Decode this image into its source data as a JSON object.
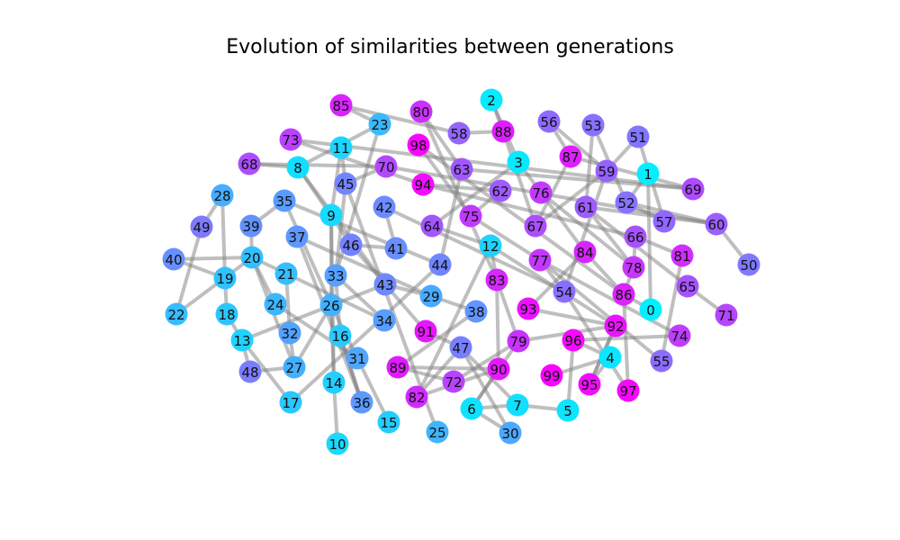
{
  "title": "Evolution of similarities between generations",
  "colors": {
    "edge": "#808080",
    "low": "#00f0ff",
    "high": "#ff00ff"
  },
  "nodes": [
    {
      "id": "0",
      "v": 0.0
    },
    {
      "id": "1",
      "v": 0.01
    },
    {
      "id": "2",
      "v": 0.02
    },
    {
      "id": "3",
      "v": 0.03
    },
    {
      "id": "4",
      "v": 0.04
    },
    {
      "id": "5",
      "v": 0.05
    },
    {
      "id": "6",
      "v": 0.06
    },
    {
      "id": "7",
      "v": 0.07
    },
    {
      "id": "8",
      "v": 0.08
    },
    {
      "id": "9",
      "v": 0.09
    },
    {
      "id": "10",
      "v": 0.1
    },
    {
      "id": "11",
      "v": 0.11
    },
    {
      "id": "12",
      "v": 0.12
    },
    {
      "id": "13",
      "v": 0.13
    },
    {
      "id": "14",
      "v": 0.14
    },
    {
      "id": "15",
      "v": 0.15
    },
    {
      "id": "16",
      "v": 0.16
    },
    {
      "id": "17",
      "v": 0.17
    },
    {
      "id": "18",
      "v": 0.18
    },
    {
      "id": "19",
      "v": 0.19
    },
    {
      "id": "20",
      "v": 0.2
    },
    {
      "id": "21",
      "v": 0.21
    },
    {
      "id": "22",
      "v": 0.22
    },
    {
      "id": "23",
      "v": 0.23
    },
    {
      "id": "24",
      "v": 0.24
    },
    {
      "id": "25",
      "v": 0.25
    },
    {
      "id": "26",
      "v": 0.26
    },
    {
      "id": "27",
      "v": 0.27
    },
    {
      "id": "28",
      "v": 0.28
    },
    {
      "id": "29",
      "v": 0.29
    },
    {
      "id": "30",
      "v": 0.3
    },
    {
      "id": "31",
      "v": 0.31
    },
    {
      "id": "32",
      "v": 0.32
    },
    {
      "id": "33",
      "v": 0.33
    },
    {
      "id": "34",
      "v": 0.34
    },
    {
      "id": "35",
      "v": 0.35
    },
    {
      "id": "36",
      "v": 0.36
    },
    {
      "id": "37",
      "v": 0.37
    },
    {
      "id": "38",
      "v": 0.38
    },
    {
      "id": "39",
      "v": 0.39
    },
    {
      "id": "40",
      "v": 0.4
    },
    {
      "id": "41",
      "v": 0.41
    },
    {
      "id": "42",
      "v": 0.42
    },
    {
      "id": "43",
      "v": 0.43
    },
    {
      "id": "44",
      "v": 0.44
    },
    {
      "id": "45",
      "v": 0.45
    },
    {
      "id": "46",
      "v": 0.46
    },
    {
      "id": "47",
      "v": 0.47
    },
    {
      "id": "48",
      "v": 0.48
    },
    {
      "id": "49",
      "v": 0.49
    },
    {
      "id": "50",
      "v": 0.5
    },
    {
      "id": "51",
      "v": 0.51
    },
    {
      "id": "52",
      "v": 0.52
    },
    {
      "id": "53",
      "v": 0.53
    },
    {
      "id": "54",
      "v": 0.54
    },
    {
      "id": "55",
      "v": 0.55
    },
    {
      "id": "56",
      "v": 0.56
    },
    {
      "id": "57",
      "v": 0.57
    },
    {
      "id": "58",
      "v": 0.58
    },
    {
      "id": "59",
      "v": 0.59
    },
    {
      "id": "60",
      "v": 0.6
    },
    {
      "id": "61",
      "v": 0.61
    },
    {
      "id": "62",
      "v": 0.62
    },
    {
      "id": "63",
      "v": 0.63
    },
    {
      "id": "64",
      "v": 0.64
    },
    {
      "id": "65",
      "v": 0.65
    },
    {
      "id": "66",
      "v": 0.66
    },
    {
      "id": "67",
      "v": 0.67
    },
    {
      "id": "68",
      "v": 0.68
    },
    {
      "id": "69",
      "v": 0.69
    },
    {
      "id": "70",
      "v": 0.7
    },
    {
      "id": "71",
      "v": 0.71
    },
    {
      "id": "72",
      "v": 0.72
    },
    {
      "id": "73",
      "v": 0.73
    },
    {
      "id": "74",
      "v": 0.74
    },
    {
      "id": "75",
      "v": 0.75
    },
    {
      "id": "76",
      "v": 0.76
    },
    {
      "id": "77",
      "v": 0.77
    },
    {
      "id": "78",
      "v": 0.78
    },
    {
      "id": "79",
      "v": 0.79
    },
    {
      "id": "80",
      "v": 0.8
    },
    {
      "id": "81",
      "v": 0.81
    },
    {
      "id": "82",
      "v": 0.82
    },
    {
      "id": "83",
      "v": 0.83
    },
    {
      "id": "84",
      "v": 0.84
    },
    {
      "id": "85",
      "v": 0.85
    },
    {
      "id": "86",
      "v": 0.86
    },
    {
      "id": "87",
      "v": 0.87
    },
    {
      "id": "88",
      "v": 0.88
    },
    {
      "id": "89",
      "v": 0.89
    },
    {
      "id": "90",
      "v": 0.9
    },
    {
      "id": "91",
      "v": 0.91
    },
    {
      "id": "92",
      "v": 0.92
    },
    {
      "id": "93",
      "v": 0.93
    },
    {
      "id": "94",
      "v": 0.94
    },
    {
      "id": "95",
      "v": 0.95
    },
    {
      "id": "96",
      "v": 0.96
    },
    {
      "id": "97",
      "v": 0.97
    },
    {
      "id": "98",
      "v": 0.98
    },
    {
      "id": "99",
      "v": 0.99
    }
  ],
  "edges": [
    [
      "2",
      "88"
    ],
    [
      "2",
      "3"
    ],
    [
      "56",
      "59"
    ],
    [
      "56",
      "87"
    ],
    [
      "53",
      "61"
    ],
    [
      "53",
      "52"
    ],
    [
      "51",
      "57"
    ],
    [
      "51",
      "59"
    ],
    [
      "1",
      "0"
    ],
    [
      "1",
      "52"
    ],
    [
      "69",
      "87"
    ],
    [
      "69",
      "63"
    ],
    [
      "60",
      "50"
    ],
    [
      "60",
      "61"
    ],
    [
      "60",
      "52"
    ],
    [
      "85",
      "23"
    ],
    [
      "85",
      "58"
    ],
    [
      "23",
      "8"
    ],
    [
      "23",
      "33"
    ],
    [
      "80",
      "63"
    ],
    [
      "80",
      "83"
    ],
    [
      "58",
      "88"
    ],
    [
      "88",
      "67"
    ],
    [
      "98",
      "75"
    ],
    [
      "98",
      "86"
    ],
    [
      "73",
      "94"
    ],
    [
      "73",
      "69"
    ],
    [
      "11",
      "45"
    ],
    [
      "11",
      "9"
    ],
    [
      "68",
      "8"
    ],
    [
      "68",
      "70"
    ],
    [
      "70",
      "60"
    ],
    [
      "70",
      "45"
    ],
    [
      "8",
      "46"
    ],
    [
      "8",
      "43"
    ],
    [
      "94",
      "62"
    ],
    [
      "94",
      "66"
    ],
    [
      "63",
      "44"
    ],
    [
      "3",
      "76"
    ],
    [
      "3",
      "64"
    ],
    [
      "87",
      "67"
    ],
    [
      "59",
      "54"
    ],
    [
      "28",
      "49"
    ],
    [
      "28",
      "19"
    ],
    [
      "35",
      "39"
    ],
    [
      "35",
      "26"
    ],
    [
      "35",
      "44"
    ],
    [
      "45",
      "33"
    ],
    [
      "45",
      "25"
    ],
    [
      "9",
      "26"
    ],
    [
      "9",
      "14"
    ],
    [
      "42",
      "41"
    ],
    [
      "42",
      "54"
    ],
    [
      "62",
      "75"
    ],
    [
      "76",
      "84"
    ],
    [
      "76",
      "78"
    ],
    [
      "61",
      "78"
    ],
    [
      "61",
      "65"
    ],
    [
      "57",
      "52"
    ],
    [
      "49",
      "22"
    ],
    [
      "39",
      "20"
    ],
    [
      "37",
      "36"
    ],
    [
      "37",
      "29"
    ],
    [
      "46",
      "43"
    ],
    [
      "46",
      "41"
    ],
    [
      "64",
      "12"
    ],
    [
      "75",
      "77"
    ],
    [
      "67",
      "59"
    ],
    [
      "66",
      "78"
    ],
    [
      "66",
      "81"
    ],
    [
      "40",
      "19"
    ],
    [
      "40",
      "20"
    ],
    [
      "20",
      "21"
    ],
    [
      "20",
      "27"
    ],
    [
      "19",
      "18"
    ],
    [
      "21",
      "32"
    ],
    [
      "12",
      "83"
    ],
    [
      "12",
      "92"
    ],
    [
      "77",
      "54"
    ],
    [
      "77",
      "55"
    ],
    [
      "77",
      "74"
    ],
    [
      "84",
      "86"
    ],
    [
      "81",
      "55"
    ],
    [
      "65",
      "71"
    ],
    [
      "78",
      "86"
    ],
    [
      "22",
      "20"
    ],
    [
      "18",
      "13"
    ],
    [
      "24",
      "31"
    ],
    [
      "24",
      "20"
    ],
    [
      "33",
      "34"
    ],
    [
      "33",
      "16"
    ],
    [
      "43",
      "29"
    ],
    [
      "43",
      "91"
    ],
    [
      "29",
      "38"
    ],
    [
      "83",
      "90"
    ],
    [
      "83",
      "79"
    ],
    [
      "54",
      "97"
    ],
    [
      "86",
      "97"
    ],
    [
      "86",
      "0"
    ],
    [
      "13",
      "48"
    ],
    [
      "13",
      "17"
    ],
    [
      "32",
      "27"
    ],
    [
      "26",
      "31"
    ],
    [
      "26",
      "14"
    ],
    [
      "16",
      "36"
    ],
    [
      "91",
      "47"
    ],
    [
      "47",
      "7"
    ],
    [
      "47",
      "30"
    ],
    [
      "38",
      "89"
    ],
    [
      "93",
      "92"
    ],
    [
      "79",
      "92"
    ],
    [
      "96",
      "74"
    ],
    [
      "92",
      "95"
    ],
    [
      "48",
      "27"
    ],
    [
      "27",
      "26"
    ],
    [
      "31",
      "15"
    ],
    [
      "89",
      "72"
    ],
    [
      "72",
      "79"
    ],
    [
      "90",
      "82"
    ],
    [
      "4",
      "99"
    ],
    [
      "4",
      "95"
    ],
    [
      "14",
      "10"
    ],
    [
      "36",
      "16"
    ],
    [
      "82",
      "47"
    ],
    [
      "6",
      "7"
    ],
    [
      "7",
      "5"
    ],
    [
      "95",
      "92"
    ],
    [
      "6",
      "90"
    ],
    [
      "5",
      "96"
    ],
    [
      "12",
      "82"
    ],
    [
      "44",
      "17"
    ],
    [
      "43",
      "13"
    ],
    [
      "21",
      "34"
    ],
    [
      "79",
      "6"
    ],
    [
      "84",
      "93"
    ],
    [
      "96",
      "4"
    ],
    [
      "89",
      "90"
    ],
    [
      "30",
      "6"
    ]
  ]
}
